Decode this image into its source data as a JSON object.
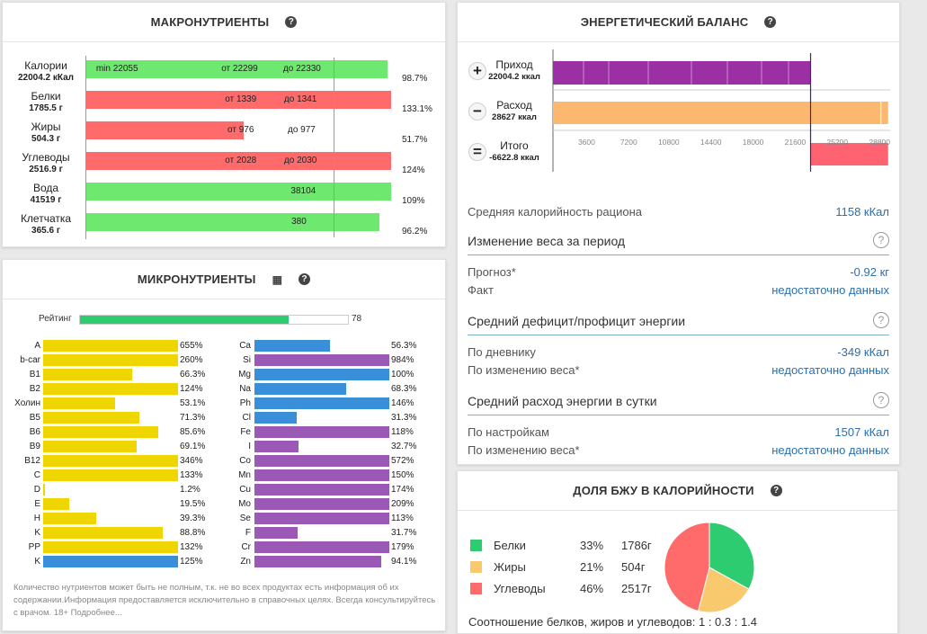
{
  "macro": {
    "title": "МАКРОНУТРИЕНТЫ",
    "rows": [
      {
        "name": "Калории",
        "amount": "22004.2 кКал",
        "pct": "98.7%",
        "fill": 0.987,
        "color": "#6ee86e",
        "labels": [
          {
            "text": "min 22055",
            "pos": 0.123
          },
          {
            "text": "от 22299",
            "pos": 0.533
          },
          {
            "text": "до 22330",
            "pos": 0.735
          }
        ]
      },
      {
        "name": "Белки",
        "amount": "1785.5 г",
        "pct": "133.1%",
        "fill": 1.331,
        "color": "#ff6b6b",
        "labels": [
          {
            "text": "от 1339",
            "pos": 0.545
          },
          {
            "text": "до 1341",
            "pos": 0.738
          }
        ]
      },
      {
        "name": "Жиры",
        "amount": "504.3 г",
        "pct": "51.7%",
        "fill": 0.517,
        "color": "#ff6b6b",
        "labels": [
          {
            "text": "от 976",
            "pos": 0.553
          },
          {
            "text": "до 977",
            "pos": 0.75
          }
        ]
      },
      {
        "name": "Углеводы",
        "amount": "2516.9 г",
        "pct": "124%",
        "fill": 1.24,
        "color": "#ff6b6b",
        "labels": [
          {
            "text": "от 2028",
            "pos": 0.545
          },
          {
            "text": "до 2030",
            "pos": 0.738
          }
        ]
      },
      {
        "name": "Вода",
        "amount": "41519 г",
        "pct": "109%",
        "fill": 1.09,
        "color": "#6ee86e",
        "labels": [
          {
            "text": "38104",
            "pos": 0.76
          }
        ]
      },
      {
        "name": "Клетчатка",
        "amount": "365.6 г",
        "pct": "96.2%",
        "fill": 0.962,
        "color": "#6ee86e",
        "labels": [
          {
            "text": "380",
            "pos": 0.762
          }
        ]
      }
    ]
  },
  "micro": {
    "title": "МИКРОНУТРИЕНТЫ",
    "rating_label": "Рейтинг",
    "rating_value": "78",
    "rating_fill": 0.78,
    "left": [
      {
        "name": "A",
        "val": "655%",
        "fill": 1.0,
        "color": "#f0d600"
      },
      {
        "name": "b-car",
        "val": "260%",
        "fill": 1.0,
        "color": "#f0d600"
      },
      {
        "name": "B1",
        "val": "66.3%",
        "fill": 0.663,
        "color": "#f0d600"
      },
      {
        "name": "B2",
        "val": "124%",
        "fill": 1.0,
        "color": "#f0d600"
      },
      {
        "name": "Холин",
        "val": "53.1%",
        "fill": 0.531,
        "color": "#f0d600"
      },
      {
        "name": "B5",
        "val": "71.3%",
        "fill": 0.713,
        "color": "#f0d600"
      },
      {
        "name": "B6",
        "val": "85.6%",
        "fill": 0.856,
        "color": "#f0d600"
      },
      {
        "name": "B9",
        "val": "69.1%",
        "fill": 0.691,
        "color": "#f0d600"
      },
      {
        "name": "B12",
        "val": "346%",
        "fill": 1.0,
        "color": "#f0d600"
      },
      {
        "name": "C",
        "val": "133%",
        "fill": 1.0,
        "color": "#f0d600"
      },
      {
        "name": "D",
        "val": "1.2%",
        "fill": 0.012,
        "color": "#f0d600"
      },
      {
        "name": "E",
        "val": "19.5%",
        "fill": 0.195,
        "color": "#f0d600"
      },
      {
        "name": "H",
        "val": "39.3%",
        "fill": 0.393,
        "color": "#f0d600"
      },
      {
        "name": "K",
        "val": "88.8%",
        "fill": 0.888,
        "color": "#f0d600"
      },
      {
        "name": "PP",
        "val": "132%",
        "fill": 1.0,
        "color": "#f0d600"
      },
      {
        "name": "K",
        "val": "125%",
        "fill": 1.0,
        "color": "#3a8fd9"
      }
    ],
    "right": [
      {
        "name": "Ca",
        "val": "56.3%",
        "fill": 0.563,
        "color": "#3a8fd9"
      },
      {
        "name": "Si",
        "val": "984%",
        "fill": 1.0,
        "color": "#9b59b6"
      },
      {
        "name": "Mg",
        "val": "100%",
        "fill": 1.0,
        "color": "#3a8fd9"
      },
      {
        "name": "Na",
        "val": "68.3%",
        "fill": 0.683,
        "color": "#3a8fd9"
      },
      {
        "name": "Ph",
        "val": "146%",
        "fill": 1.0,
        "color": "#3a8fd9"
      },
      {
        "name": "Cl",
        "val": "31.3%",
        "fill": 0.313,
        "color": "#3a8fd9"
      },
      {
        "name": "Fe",
        "val": "118%",
        "fill": 1.0,
        "color": "#9b59b6"
      },
      {
        "name": "I",
        "val": "32.7%",
        "fill": 0.327,
        "color": "#9b59b6"
      },
      {
        "name": "Co",
        "val": "572%",
        "fill": 1.0,
        "color": "#9b59b6"
      },
      {
        "name": "Mn",
        "val": "150%",
        "fill": 1.0,
        "color": "#9b59b6"
      },
      {
        "name": "Cu",
        "val": "174%",
        "fill": 1.0,
        "color": "#9b59b6"
      },
      {
        "name": "Mo",
        "val": "209%",
        "fill": 1.0,
        "color": "#9b59b6"
      },
      {
        "name": "Se",
        "val": "113%",
        "fill": 1.0,
        "color": "#9b59b6"
      },
      {
        "name": "F",
        "val": "31.7%",
        "fill": 0.317,
        "color": "#9b59b6"
      },
      {
        "name": "Cr",
        "val": "179%",
        "fill": 1.0,
        "color": "#9b59b6"
      },
      {
        "name": "Zn",
        "val": "94.1%",
        "fill": 0.941,
        "color": "#9b59b6"
      }
    ],
    "note": "Количество нутриентов может быть не полным, т.к. не во всех продуктах есть информация об их содержании.Информация предоставляется исключительно в справочных целях. Всегда консультируйтесь с врачом. 18+ Подробнее..."
  },
  "energy": {
    "title": "ЭНЕРГЕТИЧЕСКИЙ БАЛАНС",
    "income_label": "Приход",
    "income_value": "22004.2 ккал",
    "income": 22004.2,
    "expense_label": "Расход",
    "expense_value": "28627 ккал",
    "expense": 28627,
    "total_label": "Итого",
    "total_value": "-6622.8 ккал",
    "axis_max": 28800,
    "ticks": [
      "3600",
      "7200",
      "10800",
      "14400",
      "18000",
      "21600",
      "25200",
      "28800"
    ],
    "avg_label": "Средняя калорийность рациона",
    "avg_value": "1158 кКал",
    "sections": [
      {
        "title": "Изменение веса за период",
        "rows": [
          {
            "l": "Прогноз*",
            "r": "-0.92 кг"
          },
          {
            "l": "Факт",
            "r": "недостаточно данных"
          }
        ]
      },
      {
        "title": "Средний дефицит/профицит энергии",
        "rows": [
          {
            "l": "По дневнику",
            "r": "-349 кКал"
          },
          {
            "l": "По изменению веса*",
            "r": "недостаточно данных"
          }
        ]
      },
      {
        "title": "Средний расход энергии в сутки",
        "rows": [
          {
            "l": "По настройкам",
            "r": "1507 кКал"
          },
          {
            "l": "По изменению веса*",
            "r": "недостаточно данных"
          }
        ]
      }
    ]
  },
  "pfc": {
    "title": "ДОЛЯ БЖУ В КАЛОРИЙНОСТИ",
    "items": [
      {
        "name": "Белки",
        "pct": "33%",
        "grams": "1786г",
        "share": 33,
        "color": "#2ecc71"
      },
      {
        "name": "Жиры",
        "pct": "21%",
        "grams": "504г",
        "share": 21,
        "color": "#f9c96e"
      },
      {
        "name": "Углеводы",
        "pct": "46%",
        "grams": "2517г",
        "share": 46,
        "color": "#ff6b6b"
      }
    ],
    "ratio": "Соотношение белков, жиров и углеводов: 1 : 0.3 : 1.4"
  }
}
